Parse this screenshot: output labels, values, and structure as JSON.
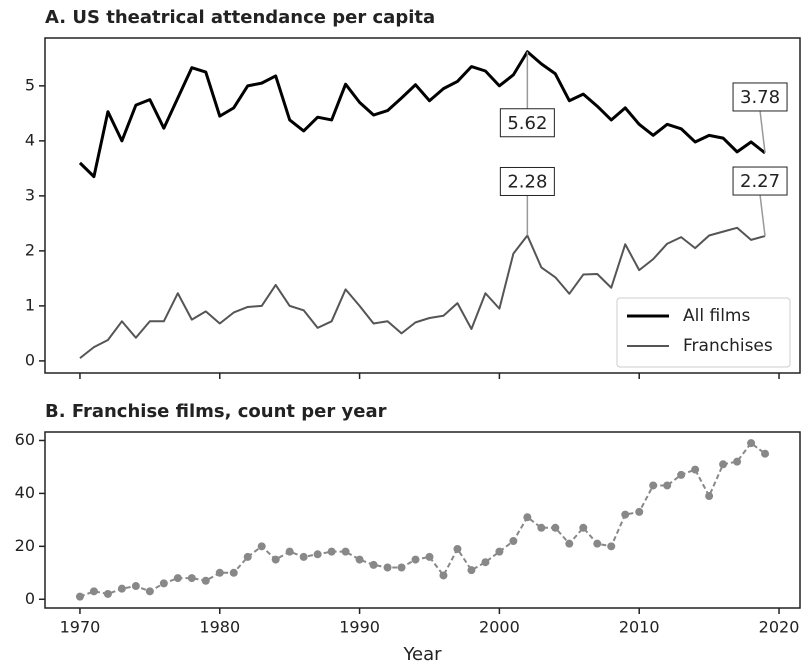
{
  "chart_data": [
    {
      "type": "line",
      "title": "A. US theatrical attendance per capita",
      "x": [
        1970,
        1971,
        1972,
        1973,
        1974,
        1975,
        1976,
        1977,
        1978,
        1979,
        1980,
        1981,
        1982,
        1983,
        1984,
        1985,
        1986,
        1987,
        1988,
        1989,
        1990,
        1991,
        1992,
        1993,
        1994,
        1995,
        1996,
        1997,
        1998,
        1999,
        2000,
        2001,
        2002,
        2003,
        2004,
        2005,
        2006,
        2007,
        2008,
        2009,
        2010,
        2011,
        2012,
        2013,
        2014,
        2015,
        2016,
        2017,
        2018,
        2019
      ],
      "series": [
        {
          "name": "All films",
          "color": "#000000",
          "values": [
            3.6,
            3.35,
            4.53,
            4.0,
            4.65,
            4.75,
            4.23,
            4.78,
            5.33,
            5.25,
            4.45,
            4.6,
            5.0,
            5.05,
            5.18,
            4.38,
            4.18,
            4.43,
            4.38,
            5.03,
            4.7,
            4.47,
            4.55,
            4.78,
            5.02,
            4.73,
            4.95,
            5.08,
            5.35,
            5.27,
            5.0,
            5.2,
            5.62,
            5.4,
            5.22,
            4.73,
            4.85,
            4.63,
            4.38,
            4.6,
            4.3,
            4.1,
            4.3,
            4.22,
            3.98,
            4.1,
            4.05,
            3.8,
            3.98,
            3.78
          ]
        },
        {
          "name": "Franchises",
          "color": "#555555",
          "values": [
            0.05,
            0.25,
            0.38,
            0.72,
            0.42,
            0.72,
            0.72,
            1.23,
            0.75,
            0.9,
            0.68,
            0.88,
            0.98,
            1.0,
            1.38,
            1.0,
            0.92,
            0.6,
            0.72,
            1.3,
            1.0,
            0.68,
            0.72,
            0.5,
            0.7,
            0.78,
            0.82,
            1.05,
            0.58,
            1.23,
            0.95,
            1.95,
            2.28,
            1.7,
            1.52,
            1.22,
            1.57,
            1.58,
            1.33,
            2.12,
            1.65,
            1.85,
            2.13,
            2.25,
            2.05,
            2.28,
            2.35,
            2.42,
            2.2,
            2.27
          ]
        }
      ],
      "annotations": [
        {
          "series": "All films",
          "x": 2002
        },
        {
          "series": "All films",
          "x": 2019
        },
        {
          "series": "Franchises",
          "x": 2002
        },
        {
          "series": "Franchises",
          "x": 2019
        }
      ],
      "xlim": [
        1967.5,
        2021.5
      ],
      "xticks": [
        1970,
        1980,
        1990,
        2000,
        2010,
        2020
      ],
      "show_xtick_labels": false,
      "ylim": [
        -0.22,
        5.87
      ],
      "yticks": [
        0,
        1,
        2,
        3,
        4,
        5
      ],
      "legend": "lower right"
    },
    {
      "type": "line-marker",
      "title": "B. Franchise films, count per year",
      "xlabel": "Year",
      "x": [
        1970,
        1971,
        1972,
        1973,
        1974,
        1975,
        1976,
        1977,
        1978,
        1979,
        1980,
        1981,
        1982,
        1983,
        1984,
        1985,
        1986,
        1987,
        1988,
        1989,
        1990,
        1991,
        1992,
        1993,
        1994,
        1995,
        1996,
        1997,
        1998,
        1999,
        2000,
        2001,
        2002,
        2003,
        2004,
        2005,
        2006,
        2007,
        2008,
        2009,
        2010,
        2011,
        2012,
        2013,
        2014,
        2015,
        2016,
        2017,
        2018,
        2019
      ],
      "values": [
        1,
        3,
        2,
        4,
        5,
        3,
        6,
        8,
        8,
        7,
        10,
        10,
        16,
        20,
        15,
        18,
        16,
        17,
        18,
        18,
        15,
        13,
        12,
        12,
        15,
        16,
        9,
        19,
        11,
        14,
        18,
        22,
        31,
        27,
        27,
        21,
        27,
        21,
        20,
        32,
        33,
        43,
        43,
        47,
        49,
        39,
        51,
        52,
        59,
        55
      ],
      "color": "#888888",
      "xlim": [
        1967.5,
        2021.5
      ],
      "xticks": [
        1970,
        1980,
        1990,
        2000,
        2010,
        2020
      ],
      "show_xtick_labels": true,
      "ylim": [
        -3.3,
        63.2
      ],
      "yticks": [
        0,
        20,
        40,
        60
      ]
    }
  ]
}
